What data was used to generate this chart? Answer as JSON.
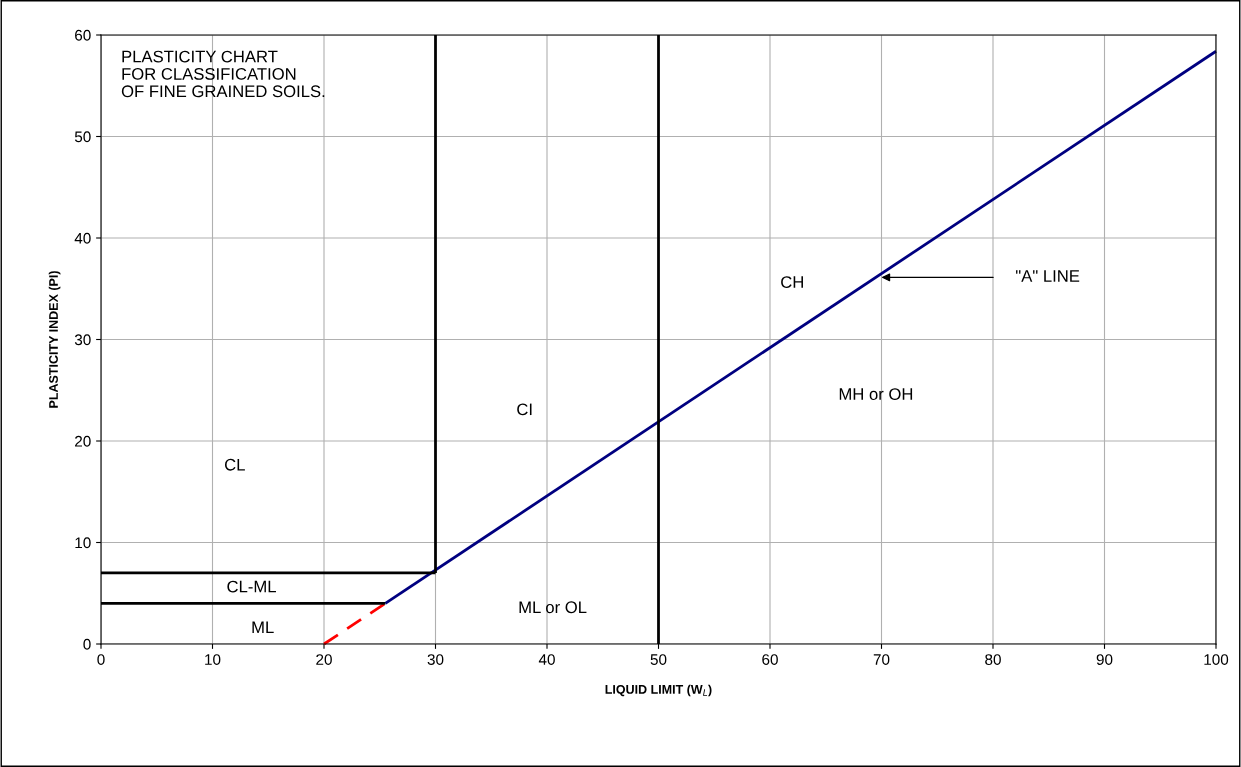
{
  "chart_data": {
    "type": "line",
    "title": "PLASTICITY CHART\nFOR CLASSIFICATION\nOF FINE GRAINED SOILS.",
    "xlabel": "LIQUID LIMIT (W$_{L}$)",
    "ylabel": "PLASTICITY INDEX (PI)",
    "xlim": [
      0,
      100
    ],
    "ylim": [
      0,
      60
    ],
    "xticks": [
      0,
      10,
      20,
      30,
      40,
      50,
      60,
      70,
      80,
      90,
      100
    ],
    "yticks": [
      0,
      10,
      20,
      30,
      40,
      50,
      60
    ],
    "grid": true,
    "series": [
      {
        "x": [
          25.5,
          100
        ],
        "values": [
          4,
          58.4
        ],
        "color": "#000080",
        "line_style": "solid"
      },
      {
        "x": [
          20,
          25.5
        ],
        "values": [
          0,
          4
        ],
        "color": "#ff0000",
        "line_style": "dashed"
      },
      {
        "x": [
          0,
          25.5
        ],
        "values": [
          4,
          4
        ],
        "color": "#000000",
        "line_style": "solid"
      },
      {
        "x": [
          0,
          30
        ],
        "values": [
          7,
          7
        ],
        "color": "#000000",
        "line_style": "solid"
      },
      {
        "x": [
          30,
          30
        ],
        "values": [
          7,
          60
        ],
        "color": "#000000",
        "line_style": "solid"
      },
      {
        "x": [
          50,
          50
        ],
        "values": [
          0,
          60
        ],
        "color": "#000000",
        "line_style": "solid"
      }
    ],
    "annotations": [
      "CH",
      "CI",
      "CL",
      "CL-ML",
      "ML",
      "ML or OL",
      "MH or OH",
      "\"A\" LINE"
    ]
  }
}
